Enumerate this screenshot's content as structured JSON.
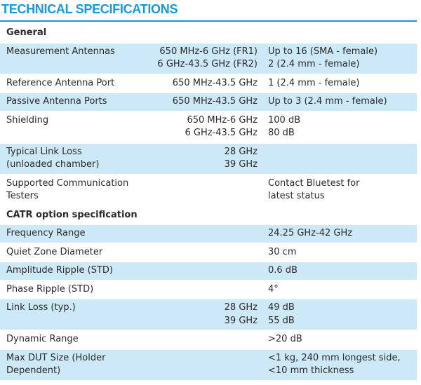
{
  "header": {
    "title": "TECHNICAL SPECIFICATIONS"
  },
  "sections": [
    {
      "heading": "General",
      "rows": [
        {
          "label": [
            "Measurement Antennas"
          ],
          "middle": [
            "650 MHz-6 GHz (FR1)",
            "6 GHz-43.5 GHz (FR2)"
          ],
          "value": [
            "Up to 16 (SMA - female)",
            "2 (2.4 mm - female)"
          ]
        },
        {
          "label": [
            "Reference Antenna Port"
          ],
          "middle": [
            "650 MHz-43.5 GHz"
          ],
          "value": [
            "1 (2.4 mm - female)"
          ]
        },
        {
          "label": [
            "Passive Antenna Ports"
          ],
          "middle": [
            "650 MHz-43.5 GHz"
          ],
          "value": [
            "Up to 3 (2.4 mm - female)"
          ]
        },
        {
          "label": [
            "Shielding"
          ],
          "middle": [
            "650 MHz-6 GHz",
            "6 GHz-43.5 GHz"
          ],
          "value": [
            "100 dB",
            "80 dB"
          ]
        },
        {
          "label": [
            "Typical Link Loss",
            "(unloaded chamber)"
          ],
          "middle": [
            "28 GHz",
            "39 GHz"
          ]
        },
        {
          "label": [
            "Supported Communication",
            "Testers"
          ],
          "value": [
            "Contact Bluetest for",
            "latest status"
          ]
        }
      ]
    },
    {
      "heading": "CATR option specification",
      "rows": [
        {
          "label": [
            "Frequency Range"
          ],
          "value": [
            "24.25 GHz-42 GHz"
          ]
        },
        {
          "label": [
            "Quiet Zone Diameter"
          ],
          "value": [
            "30 cm"
          ]
        },
        {
          "label": [
            "Amplitude Ripple (STD)"
          ],
          "value": [
            "0.6 dB"
          ]
        },
        {
          "label": [
            "Phase Ripple (STD)"
          ],
          "value": [
            "4°"
          ]
        },
        {
          "label": [
            "Link Loss (typ.)"
          ],
          "middle": [
            "28 GHz",
            "39 GHz"
          ],
          "value": [
            "49 dB",
            "55 dB"
          ]
        },
        {
          "label": [
            "Dynamic Range"
          ],
          "value": [
            ">20 dB"
          ]
        },
        {
          "label": [
            "Max DUT Size (Holder",
            "Dependent)"
          ],
          "value": [
            "<1 kg, 240 mm longest side,",
            "<10 mm thickness"
          ]
        }
      ]
    }
  ]
}
